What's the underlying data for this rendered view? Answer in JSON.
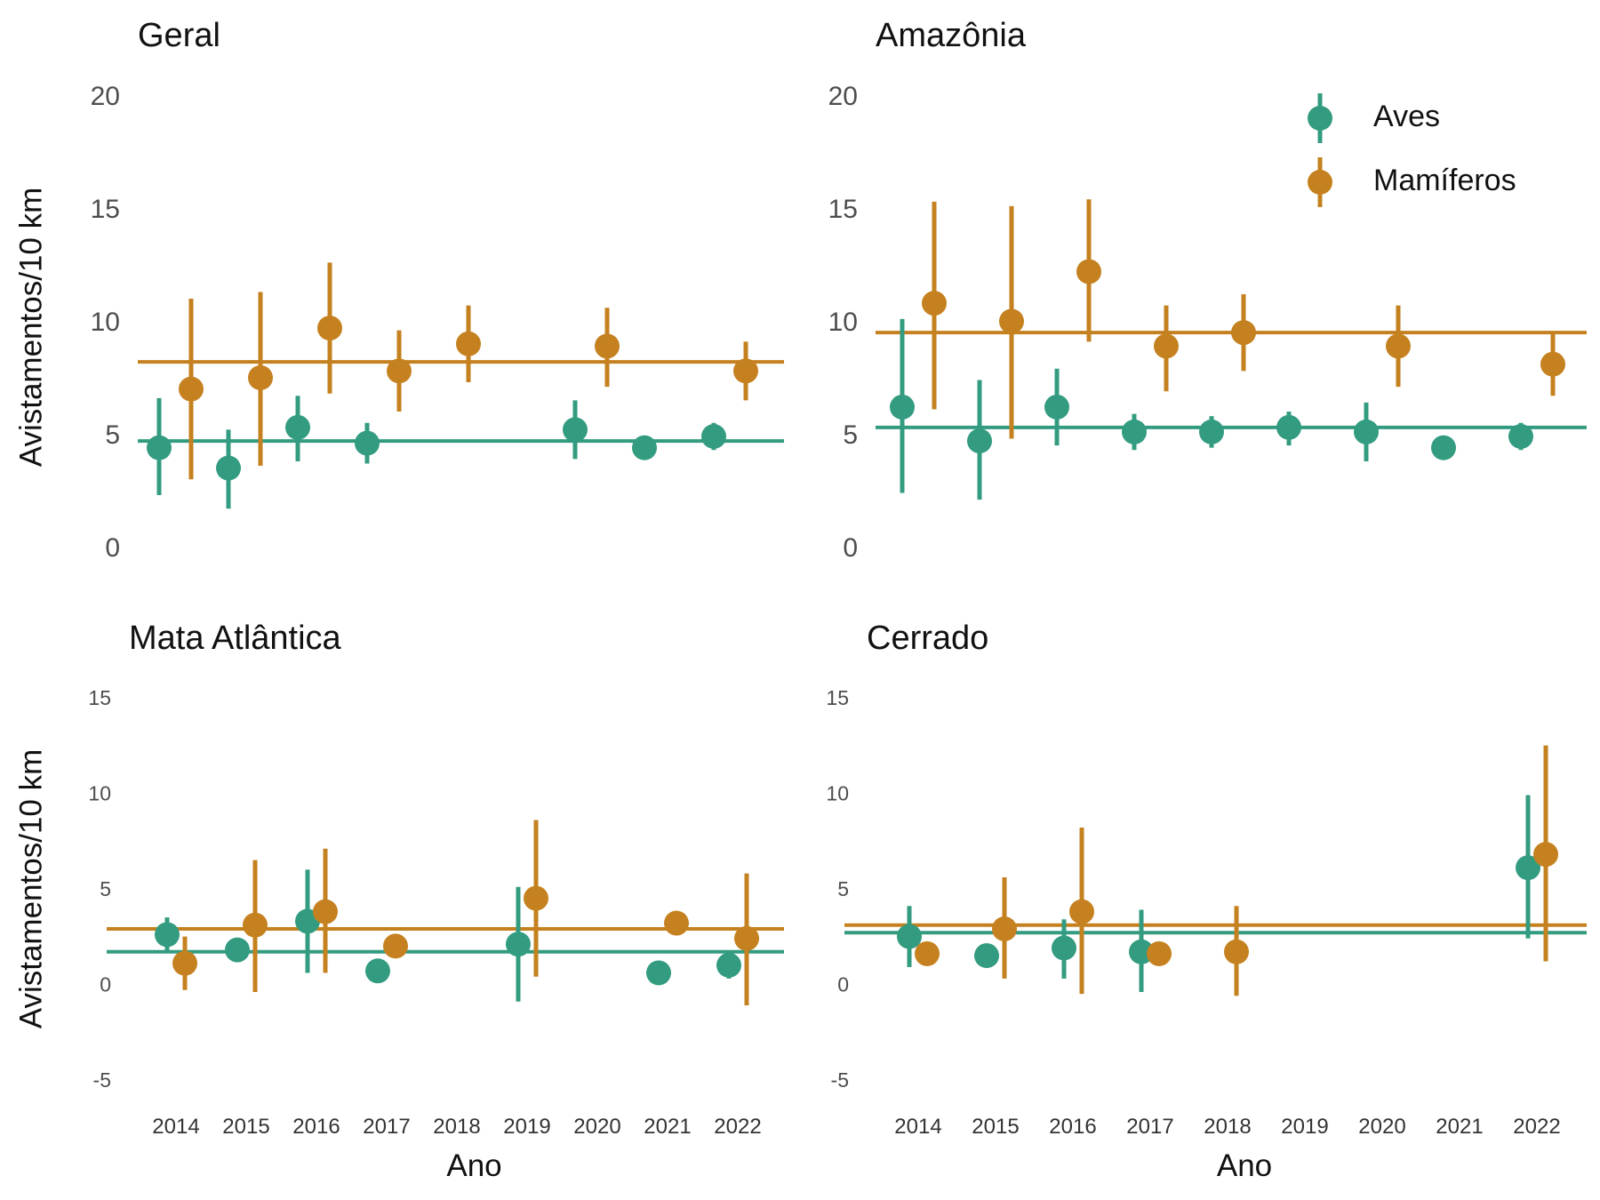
{
  "colors": {
    "aves": "#339c80",
    "mamiferos": "#c5811f"
  },
  "legend": [
    {
      "key": "aves",
      "label": "Aves"
    },
    {
      "key": "mamiferos",
      "label": "Mamíferos"
    }
  ],
  "chart_data": [
    {
      "type": "scatter",
      "title": "Geral",
      "ylabel": "Avistamentos/10 km",
      "xlabel": "",
      "ylim": [
        0,
        20
      ],
      "yticks": [
        0,
        5,
        10,
        15,
        20
      ],
      "categories": [
        "2014",
        "2015",
        "2016",
        "2017",
        "2018",
        "2019",
        "2020",
        "2021",
        "2022"
      ],
      "xticks_shown": false,
      "legend_position": "none",
      "grid": false,
      "series": [
        {
          "key": "aves",
          "name": "Aves",
          "mean": 4.8,
          "points": [
            {
              "x": "2014",
              "y": 4.5,
              "lo": 2.4,
              "hi": 6.7
            },
            {
              "x": "2015",
              "y": 3.6,
              "lo": 1.8,
              "hi": 5.3
            },
            {
              "x": "2016",
              "y": 5.4,
              "lo": 3.9,
              "hi": 6.8
            },
            {
              "x": "2017",
              "y": 4.7,
              "lo": 3.8,
              "hi": 5.6
            },
            {
              "x": "2020",
              "y": 5.3,
              "lo": 4.0,
              "hi": 6.6
            },
            {
              "x": "2021",
              "y": 4.5,
              "lo": 4.2,
              "hi": 4.7
            },
            {
              "x": "2022",
              "y": 5.0,
              "lo": 4.4,
              "hi": 5.6
            }
          ]
        },
        {
          "key": "mamiferos",
          "name": "Mamíferos",
          "mean": 8.3,
          "points": [
            {
              "x": "2014",
              "y": 7.1,
              "lo": 3.1,
              "hi": 11.1
            },
            {
              "x": "2015",
              "y": 7.6,
              "lo": 3.7,
              "hi": 11.4
            },
            {
              "x": "2016",
              "y": 9.8,
              "lo": 6.9,
              "hi": 12.7
            },
            {
              "x": "2017",
              "y": 7.9,
              "lo": 6.1,
              "hi": 9.7
            },
            {
              "x": "2018",
              "y": 9.1,
              "lo": 7.4,
              "hi": 10.8
            },
            {
              "x": "2020",
              "y": 9.0,
              "lo": 7.2,
              "hi": 10.7
            },
            {
              "x": "2022",
              "y": 7.9,
              "lo": 6.6,
              "hi": 9.2
            }
          ]
        }
      ]
    },
    {
      "type": "scatter",
      "title": "Amazônia",
      "ylabel": "",
      "xlabel": "",
      "ylim": [
        0,
        20
      ],
      "yticks": [
        0,
        5,
        10,
        15,
        20
      ],
      "categories": [
        "2014",
        "2015",
        "2016",
        "2017",
        "2018",
        "2019",
        "2020",
        "2021",
        "2022"
      ],
      "xticks_shown": false,
      "legend_position": "top-right",
      "grid": false,
      "series": [
        {
          "key": "aves",
          "name": "Aves",
          "mean": 5.4,
          "points": [
            {
              "x": "2014",
              "y": 6.3,
              "lo": 2.5,
              "hi": 10.2
            },
            {
              "x": "2015",
              "y": 4.8,
              "lo": 2.2,
              "hi": 7.5
            },
            {
              "x": "2016",
              "y": 6.3,
              "lo": 4.6,
              "hi": 8.0
            },
            {
              "x": "2017",
              "y": 5.2,
              "lo": 4.4,
              "hi": 6.0
            },
            {
              "x": "2018",
              "y": 5.2,
              "lo": 4.5,
              "hi": 5.9
            },
            {
              "x": "2019",
              "y": 5.4,
              "lo": 4.6,
              "hi": 6.1
            },
            {
              "x": "2020",
              "y": 5.2,
              "lo": 3.9,
              "hi": 6.5
            },
            {
              "x": "2021",
              "y": 4.5,
              "lo": 4.3,
              "hi": 4.7
            },
            {
              "x": "2022",
              "y": 5.0,
              "lo": 4.4,
              "hi": 5.6
            }
          ]
        },
        {
          "key": "mamiferos",
          "name": "Mamíferos",
          "mean": 9.6,
          "points": [
            {
              "x": "2014",
              "y": 10.9,
              "lo": 6.2,
              "hi": 15.4
            },
            {
              "x": "2015",
              "y": 10.1,
              "lo": 4.9,
              "hi": 15.2
            },
            {
              "x": "2016",
              "y": 12.3,
              "lo": 9.2,
              "hi": 15.5
            },
            {
              "x": "2017",
              "y": 9.0,
              "lo": 7.0,
              "hi": 10.8
            },
            {
              "x": "2018",
              "y": 9.6,
              "lo": 7.9,
              "hi": 11.3
            },
            {
              "x": "2020",
              "y": 9.0,
              "lo": 7.2,
              "hi": 10.8
            },
            {
              "x": "2022",
              "y": 8.2,
              "lo": 6.8,
              "hi": 9.6
            }
          ]
        }
      ]
    },
    {
      "type": "scatter",
      "title": "Mata Atlântica",
      "ylabel": "Avistamentos/10 km",
      "xlabel": "Ano",
      "ylim": [
        -5,
        15
      ],
      "yticks": [
        -5,
        0,
        5,
        10,
        15
      ],
      "categories": [
        "2014",
        "2015",
        "2016",
        "2017",
        "2018",
        "2019",
        "2020",
        "2021",
        "2022"
      ],
      "xticks_shown": true,
      "legend_position": "none",
      "grid": false,
      "series": [
        {
          "key": "aves",
          "name": "Aves",
          "mean": 1.8,
          "points": [
            {
              "x": "2014",
              "y": 2.7,
              "lo": 1.8,
              "hi": 3.6
            },
            {
              "x": "2015",
              "y": 1.9,
              "lo": 1.5,
              "hi": 2.3
            },
            {
              "x": "2016",
              "y": 3.4,
              "lo": 0.7,
              "hi": 6.1
            },
            {
              "x": "2017",
              "y": 0.8,
              "lo": 0.6,
              "hi": 1.0
            },
            {
              "x": "2019",
              "y": 2.2,
              "lo": -0.8,
              "hi": 5.2
            },
            {
              "x": "2021",
              "y": 0.7,
              "lo": 0.5,
              "hi": 0.9
            },
            {
              "x": "2022",
              "y": 1.1,
              "lo": 0.4,
              "hi": 1.8
            }
          ]
        },
        {
          "key": "mamiferos",
          "name": "Mamíferos",
          "mean": 3.0,
          "points": [
            {
              "x": "2014",
              "y": 1.2,
              "lo": -0.2,
              "hi": 2.6
            },
            {
              "x": "2015",
              "y": 3.2,
              "lo": -0.3,
              "hi": 6.6
            },
            {
              "x": "2016",
              "y": 3.9,
              "lo": 0.7,
              "hi": 7.2
            },
            {
              "x": "2017",
              "y": 2.1,
              "lo": 1.8,
              "hi": 2.4
            },
            {
              "x": "2019",
              "y": 4.6,
              "lo": 0.5,
              "hi": 8.7
            },
            {
              "x": "2021",
              "y": 3.3,
              "lo": 3.0,
              "hi": 3.6
            },
            {
              "x": "2022",
              "y": 2.5,
              "lo": -1.0,
              "hi": 5.9
            }
          ]
        }
      ]
    },
    {
      "type": "scatter",
      "title": "Cerrado",
      "ylabel": "",
      "xlabel": "Ano",
      "ylim": [
        -5,
        15
      ],
      "yticks": [
        -5,
        0,
        5,
        10,
        15
      ],
      "categories": [
        "2014",
        "2015",
        "2016",
        "2017",
        "2018",
        "2019",
        "2020",
        "2021",
        "2022"
      ],
      "xticks_shown": true,
      "legend_position": "none",
      "grid": false,
      "series": [
        {
          "key": "aves",
          "name": "Aves",
          "mean": 2.8,
          "points": [
            {
              "x": "2014",
              "y": 2.6,
              "lo": 1.0,
              "hi": 4.2
            },
            {
              "x": "2015",
              "y": 1.6,
              "lo": 1.3,
              "hi": 1.9
            },
            {
              "x": "2016",
              "y": 2.0,
              "lo": 0.4,
              "hi": 3.5
            },
            {
              "x": "2017",
              "y": 1.8,
              "lo": -0.3,
              "hi": 4.0
            },
            {
              "x": "2022",
              "y": 6.2,
              "lo": 2.5,
              "hi": 10.0
            }
          ]
        },
        {
          "key": "mamiferos",
          "name": "Mamíferos",
          "mean": 3.2,
          "points": [
            {
              "x": "2014",
              "y": 1.7,
              "lo": 1.4,
              "hi": 2.0
            },
            {
              "x": "2015",
              "y": 3.0,
              "lo": 0.4,
              "hi": 5.7
            },
            {
              "x": "2016",
              "y": 3.9,
              "lo": -0.4,
              "hi": 8.3
            },
            {
              "x": "2017",
              "y": 1.7,
              "lo": 1.4,
              "hi": 2.0
            },
            {
              "x": "2018",
              "y": 1.8,
              "lo": -0.5,
              "hi": 4.2
            },
            {
              "x": "2022",
              "y": 6.9,
              "lo": 1.3,
              "hi": 12.6
            }
          ]
        }
      ]
    }
  ]
}
